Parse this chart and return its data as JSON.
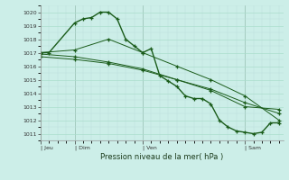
{
  "background_color": "#cceee8",
  "grid_major_color": "#aaddcc",
  "grid_minor_color": "#bbdddd",
  "line_color": "#1a5c1a",
  "title": "Pression niveau de la mer( hPa )",
  "ylim": [
    1010.5,
    1020.5
  ],
  "yticks": [
    1011,
    1012,
    1013,
    1014,
    1015,
    1016,
    1017,
    1018,
    1019,
    1020
  ],
  "xlim": [
    0,
    57
  ],
  "xlabel_tick_positions": [
    0,
    8,
    24,
    48
  ],
  "xlabel_labels": [
    "Jeu",
    "Dim",
    "Ven",
    "Sam"
  ],
  "series1_main": {
    "x": [
      0,
      2,
      8,
      10,
      12,
      14,
      16,
      18,
      20,
      22,
      24,
      26,
      28,
      30,
      32,
      34,
      36,
      38,
      40,
      42,
      44,
      46,
      48,
      50,
      52,
      54,
      56
    ],
    "y": [
      1017.0,
      1017.0,
      1019.2,
      1019.5,
      1019.6,
      1020.0,
      1020.0,
      1019.5,
      1018.0,
      1017.5,
      1017.0,
      1017.3,
      1015.3,
      1014.9,
      1014.5,
      1013.8,
      1013.6,
      1013.6,
      1013.2,
      1012.0,
      1011.5,
      1011.2,
      1011.1,
      1011.0,
      1011.1,
      1011.8,
      1011.8
    ]
  },
  "series2_upper": {
    "x": [
      0,
      8,
      16,
      24,
      32,
      40,
      48,
      56
    ],
    "y": [
      1017.0,
      1017.2,
      1018.0,
      1017.0,
      1016.0,
      1015.0,
      1013.8,
      1012.0
    ]
  },
  "series3_mid": {
    "x": [
      0,
      8,
      16,
      24,
      32,
      40,
      48,
      56
    ],
    "y": [
      1016.7,
      1016.5,
      1016.2,
      1015.7,
      1015.0,
      1014.3,
      1013.3,
      1012.5
    ]
  },
  "series4_lower": {
    "x": [
      0,
      8,
      16,
      24,
      32,
      40,
      48,
      56
    ],
    "y": [
      1016.9,
      1016.7,
      1016.3,
      1015.8,
      1015.0,
      1014.2,
      1013.0,
      1012.8
    ]
  }
}
